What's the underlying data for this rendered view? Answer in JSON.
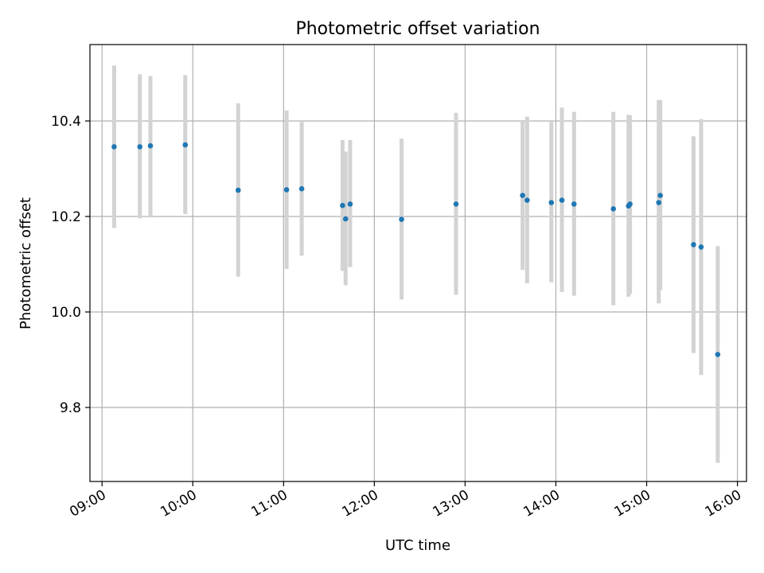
{
  "chart_data": {
    "type": "scatter",
    "title": "Photometric offset variation",
    "xlabel": "UTC time",
    "ylabel": "Photometric offset",
    "xlim": [
      "08:52",
      "16:06"
    ],
    "ylim": [
      9.645,
      10.56
    ],
    "xticks": [
      "09:00",
      "10:00",
      "11:00",
      "12:00",
      "13:00",
      "14:00",
      "15:00",
      "16:00"
    ],
    "yticks": [
      "9.8",
      "10.0",
      "10.2",
      "10.4"
    ],
    "grid": true,
    "point_color": "#1f77b4",
    "errorbar_color": "#d3d3d3",
    "series": [
      {
        "points": [
          {
            "x": "09:08",
            "y": 10.346,
            "ylow": 10.176,
            "yhigh": 10.516
          },
          {
            "x": "09:25",
            "y": 10.346,
            "ylow": 10.196,
            "yhigh": 10.498
          },
          {
            "x": "09:32",
            "y": 10.348,
            "ylow": 10.198,
            "yhigh": 10.494
          },
          {
            "x": "09:55",
            "y": 10.35,
            "ylow": 10.205,
            "yhigh": 10.496
          },
          {
            "x": "10:30",
            "y": 10.255,
            "ylow": 10.074,
            "yhigh": 10.437
          },
          {
            "x": "11:02",
            "y": 10.256,
            "ylow": 10.09,
            "yhigh": 10.422
          },
          {
            "x": "11:12",
            "y": 10.258,
            "ylow": 10.118,
            "yhigh": 10.398
          },
          {
            "x": "11:39",
            "y": 10.223,
            "ylow": 10.086,
            "yhigh": 10.36
          },
          {
            "x": "11:41",
            "y": 10.195,
            "ylow": 10.056,
            "yhigh": 10.336
          },
          {
            "x": "11:44",
            "y": 10.226,
            "ylow": 10.094,
            "yhigh": 10.36
          },
          {
            "x": "12:18",
            "y": 10.194,
            "ylow": 10.026,
            "yhigh": 10.363
          },
          {
            "x": "12:54",
            "y": 10.226,
            "ylow": 10.036,
            "yhigh": 10.417
          },
          {
            "x": "13:38",
            "y": 10.244,
            "ylow": 10.088,
            "yhigh": 10.4
          },
          {
            "x": "13:41",
            "y": 10.234,
            "ylow": 10.06,
            "yhigh": 10.409
          },
          {
            "x": "13:57",
            "y": 10.229,
            "ylow": 10.062,
            "yhigh": 10.398
          },
          {
            "x": "14:04",
            "y": 10.234,
            "ylow": 10.042,
            "yhigh": 10.428
          },
          {
            "x": "14:12",
            "y": 10.226,
            "ylow": 10.034,
            "yhigh": 10.419
          },
          {
            "x": "14:38",
            "y": 10.216,
            "ylow": 10.014,
            "yhigh": 10.419
          },
          {
            "x": "14:48",
            "y": 10.222,
            "ylow": 10.032,
            "yhigh": 10.413
          },
          {
            "x": "14:49",
            "y": 10.226,
            "ylow": 10.038,
            "yhigh": 10.412
          },
          {
            "x": "15:08",
            "y": 10.229,
            "ylow": 10.018,
            "yhigh": 10.444
          },
          {
            "x": "15:09",
            "y": 10.244,
            "ylow": 10.046,
            "yhigh": 10.444
          },
          {
            "x": "15:31",
            "y": 10.141,
            "ylow": 9.914,
            "yhigh": 10.368
          },
          {
            "x": "15:36",
            "y": 10.136,
            "ylow": 9.868,
            "yhigh": 10.404
          },
          {
            "x": "15:47",
            "y": 9.911,
            "ylow": 9.684,
            "yhigh": 10.138
          }
        ]
      }
    ]
  }
}
